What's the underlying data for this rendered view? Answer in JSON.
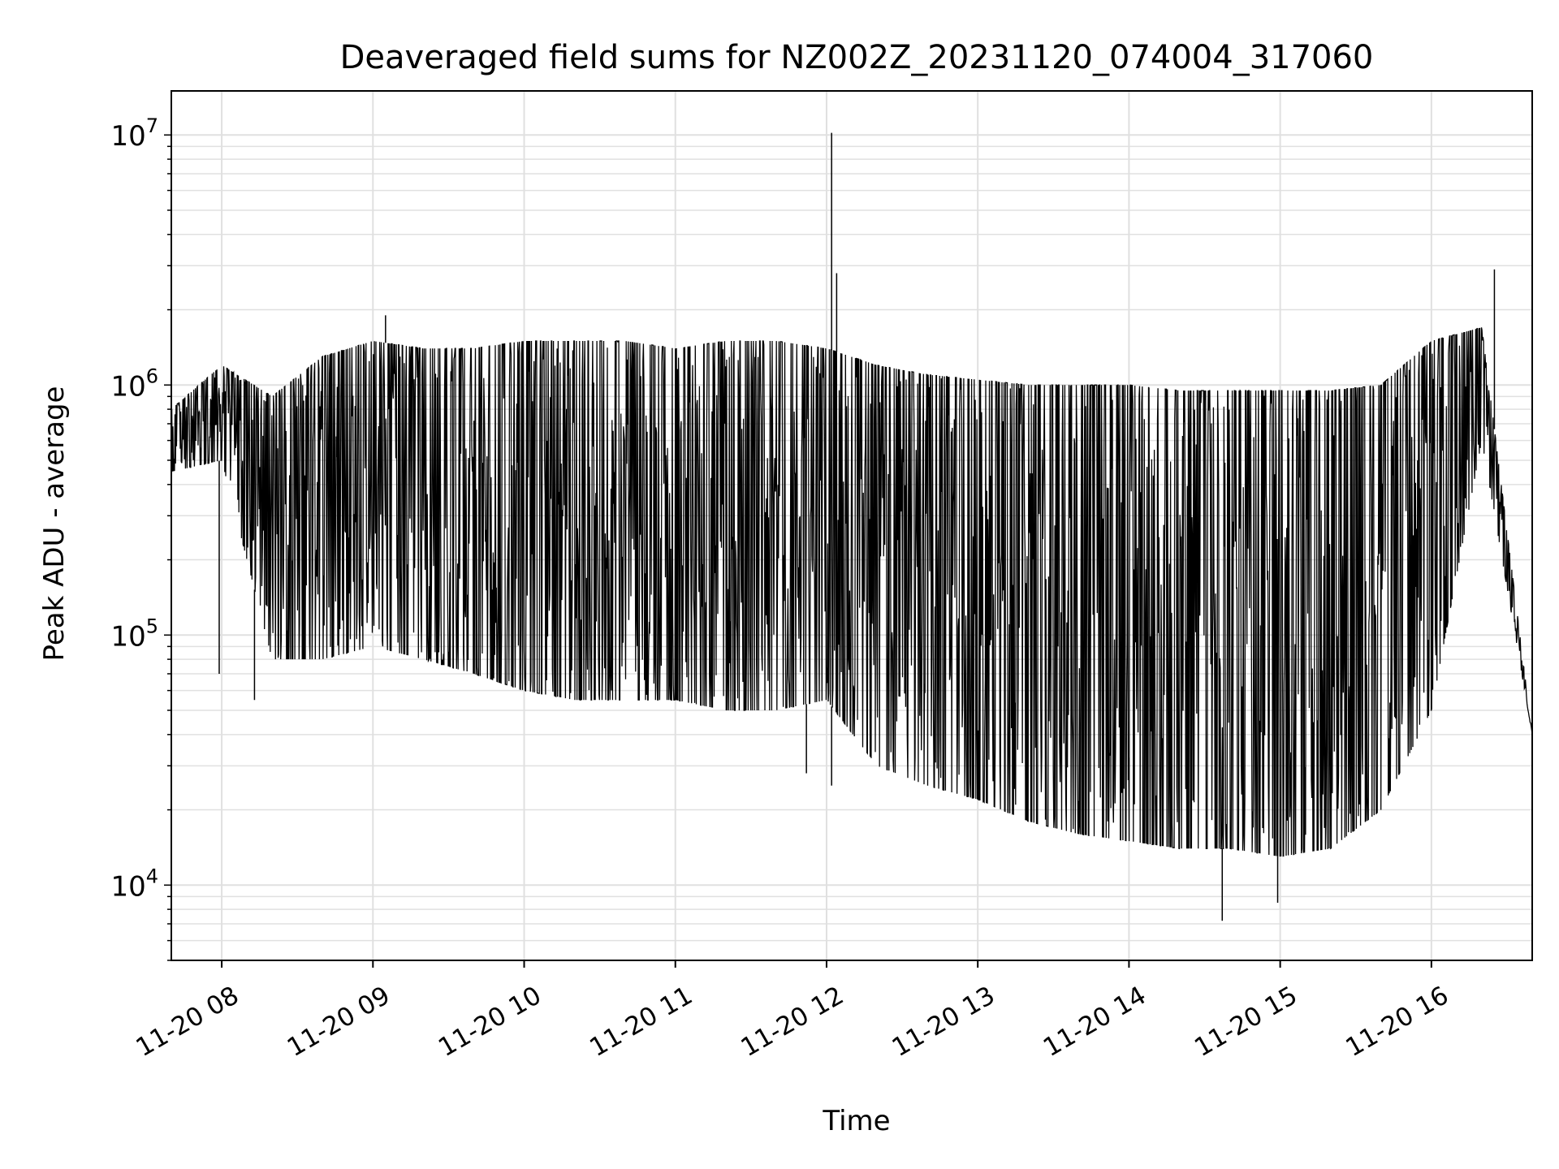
{
  "chart_data": {
    "type": "line",
    "title": "Deaveraged field sums for NZ002Z_20231120_074004_317060",
    "xlabel": "Time",
    "ylabel": "Peak ADU - average",
    "yscale": "log",
    "ylim": [
      5000,
      15000000
    ],
    "xlim": [
      "2023-11-20 07:40",
      "2023-11-20 16:40"
    ],
    "x_ticks": [
      "11-20 08",
      "11-20 09",
      "11-20 10",
      "11-20 11",
      "11-20 12",
      "11-20 13",
      "11-20 14",
      "11-20 15",
      "11-20 16"
    ],
    "y_ticks": [
      {
        "value": 10000,
        "base": "10",
        "exp": "4"
      },
      {
        "value": 100000,
        "base": "10",
        "exp": "5"
      },
      {
        "value": 1000000,
        "base": "10",
        "exp": "6"
      },
      {
        "value": 10000000,
        "base": "10",
        "exp": "7"
      }
    ],
    "grid": true,
    "line_color": "#000000",
    "grid_color": "#e0e0e0",
    "series": [
      {
        "x": [
          "2023-11-20 07:40",
          "2023-11-20 08:00",
          "2023-11-20 08:20",
          "2023-11-20 08:40",
          "2023-11-20 09:00",
          "2023-11-20 09:20",
          "2023-11-20 09:40",
          "2023-11-20 10:00",
          "2023-11-20 10:20",
          "2023-11-20 10:40",
          "2023-11-20 11:00",
          "2023-11-20 11:20",
          "2023-11-20 11:40",
          "2023-11-20 12:00",
          "2023-11-20 12:20",
          "2023-11-20 12:40",
          "2023-11-20 13:00",
          "2023-11-20 13:20",
          "2023-11-20 13:40",
          "2023-11-20 14:00",
          "2023-11-20 14:20",
          "2023-11-20 14:40",
          "2023-11-20 15:00",
          "2023-11-20 15:20",
          "2023-11-20 15:40",
          "2023-11-20 16:00",
          "2023-11-20 16:20",
          "2023-11-20 16:40"
        ],
        "upper": [
          800000,
          1200000,
          900000,
          1300000,
          1500000,
          1400000,
          1400000,
          1500000,
          1500000,
          1500000,
          1400000,
          1500000,
          1500000,
          1400000,
          1200000,
          1100000,
          1050000,
          1000000,
          1000000,
          1000000,
          950000,
          950000,
          950000,
          950000,
          1000000,
          1500000,
          1700000,
          40000
        ],
        "lower": [
          450000,
          500000,
          80000,
          80000,
          90000,
          80000,
          70000,
          60000,
          55000,
          55000,
          55000,
          50000,
          50000,
          55000,
          30000,
          25000,
          22000,
          18000,
          16000,
          15000,
          14000,
          14000,
          13000,
          14000,
          20000,
          50000,
          600000,
          40000
        ]
      }
    ],
    "spikes": [
      {
        "x": "2023-11-20 12:02",
        "y": 10200000
      },
      {
        "x": "2023-11-20 12:04",
        "y": 2800000
      },
      {
        "x": "2023-11-20 16:25",
        "y": 2900000
      },
      {
        "x": "2023-11-20 09:05",
        "y": 1900000
      },
      {
        "x": "2023-11-20 14:37",
        "y": 7200
      },
      {
        "x": "2023-11-20 14:59",
        "y": 8500
      },
      {
        "x": "2023-11-20 07:59",
        "y": 70000
      },
      {
        "x": "2023-11-20 08:13",
        "y": 55000
      },
      {
        "x": "2023-11-20 11:52",
        "y": 28000
      },
      {
        "x": "2023-11-20 12:02",
        "y": 25000
      }
    ]
  }
}
